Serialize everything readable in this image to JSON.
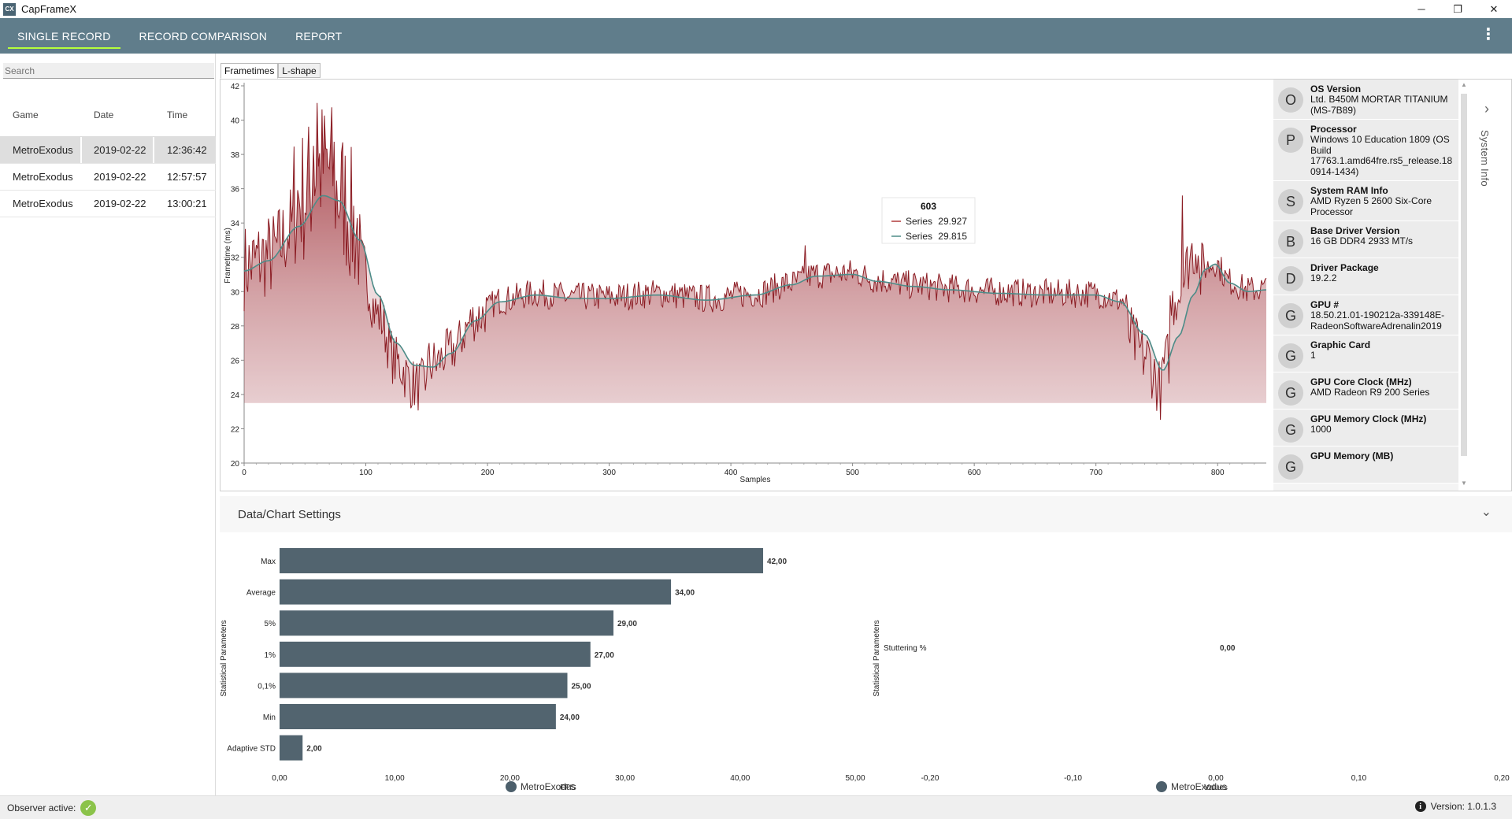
{
  "window": {
    "title": "CapFrameX",
    "icon_text": "CX",
    "minimize_glyph": "─",
    "restore_glyph": "❐",
    "close_glyph": "✕"
  },
  "nav": {
    "tabs": [
      {
        "label": "SINGLE RECORD",
        "active": true
      },
      {
        "label": "RECORD COMPARISON",
        "active": false
      },
      {
        "label": "REPORT",
        "active": false
      }
    ],
    "menu_glyph": "⋮"
  },
  "records": {
    "search_placeholder": "Search",
    "columns": [
      "Game",
      "Date",
      "Time"
    ],
    "rows": [
      {
        "game": "MetroExodus",
        "date": "2019-02-22",
        "time": "12:36:42",
        "selected": true
      },
      {
        "game": "MetroExodus",
        "date": "2019-02-22",
        "time": "12:57:57",
        "selected": false
      },
      {
        "game": "MetroExodus",
        "date": "2019-02-22",
        "time": "13:00:21",
        "selected": false
      }
    ]
  },
  "chart_tabs": [
    "Frametimes",
    "L-shape"
  ],
  "chart_data": [
    {
      "type": "line",
      "title": "",
      "xlabel": "Samples",
      "ylabel": "Frametime (ms)",
      "xlim": [
        0,
        840
      ],
      "ylim": [
        20,
        42
      ],
      "xticks": [
        0,
        100,
        200,
        300,
        400,
        500,
        600,
        700,
        800
      ],
      "yticks": [
        20,
        22,
        24,
        26,
        28,
        30,
        32,
        34,
        36,
        38,
        40,
        42
      ],
      "smooth_anchors": [
        [
          0,
          31.2
        ],
        [
          20,
          31.8
        ],
        [
          45,
          33.8
        ],
        [
          65,
          35.6
        ],
        [
          78,
          35.3
        ],
        [
          95,
          33.0
        ],
        [
          110,
          29.8
        ],
        [
          125,
          27.0
        ],
        [
          140,
          25.7
        ],
        [
          155,
          25.6
        ],
        [
          170,
          26.4
        ],
        [
          190,
          28.3
        ],
        [
          210,
          29.4
        ],
        [
          240,
          29.8
        ],
        [
          270,
          29.6
        ],
        [
          300,
          29.6
        ],
        [
          340,
          29.8
        ],
        [
          380,
          29.5
        ],
        [
          420,
          29.8
        ],
        [
          450,
          30.4
        ],
        [
          470,
          30.9
        ],
        [
          500,
          31.0
        ],
        [
          520,
          30.6
        ],
        [
          550,
          30.3
        ],
        [
          580,
          30.1
        ],
        [
          620,
          29.9
        ],
        [
          660,
          29.8
        ],
        [
          700,
          29.8
        ],
        [
          720,
          29.4
        ],
        [
          740,
          27.5
        ],
        [
          755,
          25.4
        ],
        [
          768,
          27.4
        ],
        [
          780,
          29.8
        ],
        [
          790,
          31.3
        ],
        [
          798,
          31.6
        ],
        [
          810,
          30.5
        ],
        [
          825,
          30.0
        ],
        [
          840,
          30.1
        ]
      ],
      "tooltip": {
        "sample": "603",
        "series": [
          {
            "name": "Series",
            "value": "29.927",
            "color": "#b03a3a"
          },
          {
            "name": "Series",
            "value": "29.815",
            "color": "#4d8c88"
          }
        ]
      },
      "colors": {
        "raw": "#8b1c23",
        "smooth": "#4d8c88",
        "fill": "#a33a40"
      }
    },
    {
      "type": "bar",
      "orientation": "horizontal",
      "categories": [
        "Max",
        "Average",
        "5%",
        "1%",
        "0,1%",
        "Min",
        "Adaptive STD"
      ],
      "values": [
        42.0,
        34.0,
        29.0,
        27.0,
        25.0,
        24.0,
        2.0
      ],
      "value_labels": [
        "42,00",
        "34,00",
        "29,00",
        "27,00",
        "25,00",
        "24,00",
        "2,00"
      ],
      "xlabel": "FPS",
      "ylabel": "Statistical Parameters",
      "xlim": [
        0,
        50
      ],
      "xtick_labels": [
        "0,00",
        "10,00",
        "20,00",
        "30,00",
        "40,00",
        "50,00"
      ],
      "legend": "MetroExodus",
      "color": "#52646f"
    },
    {
      "type": "bar",
      "orientation": "horizontal",
      "categories": [
        "Stuttering %"
      ],
      "values": [
        0.0
      ],
      "value_labels": [
        "0,00"
      ],
      "xlabel": "Values",
      "ylabel": "Statistical Parameters",
      "xlim": [
        -0.2,
        0.2
      ],
      "xtick_labels": [
        "-0,20",
        "-0,10",
        "0,00",
        "0,10",
        "0,20"
      ],
      "legend": "MetroExodus",
      "color": "#52646f"
    }
  ],
  "system_info": {
    "label": "System Info",
    "items": [
      {
        "initial": "O",
        "label": "OS Version",
        "value": "Ltd. B450M MORTAR TITANIUM (MS-7B89)"
      },
      {
        "initial": "P",
        "label": "Processor",
        "value": "Windows 10 Education 1809 (OS Build 17763.1.amd64fre.rs5_release.18 0914-1434)"
      },
      {
        "initial": "S",
        "label": "System RAM Info",
        "value": "AMD Ryzen 5 2600 Six-Core Processor"
      },
      {
        "initial": "B",
        "label": "Base Driver Version",
        "value": "16 GB DDR4 2933 MT/s"
      },
      {
        "initial": "D",
        "label": "Driver Package",
        "value": "19.2.2"
      },
      {
        "initial": "G",
        "label": "GPU #",
        "value": "18.50.21.01-190212a-339148E-RadeonSoftwareAdrenalin2019"
      },
      {
        "initial": "G",
        "label": "Graphic Card",
        "value": "1"
      },
      {
        "initial": "G",
        "label": "GPU Core Clock (MHz)",
        "value": "AMD Radeon R9 200 Series"
      },
      {
        "initial": "G",
        "label": "GPU Memory Clock (MHz)",
        "value": "1000"
      },
      {
        "initial": "G",
        "label": "GPU Memory (MB)",
        "value": ""
      }
    ]
  },
  "settings": {
    "title": "Data/Chart Settings",
    "chevron_glyph": "⌄"
  },
  "status": {
    "observer_label": "Observer active:",
    "check_glyph": "✓",
    "info_glyph": "i",
    "version": "Version: 1.0.1.3"
  }
}
